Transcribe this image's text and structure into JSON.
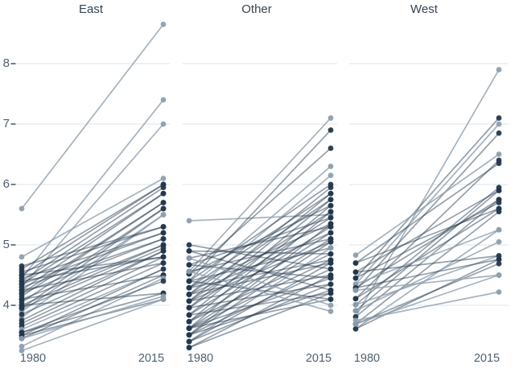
{
  "page": {
    "background": "#ffffff"
  },
  "chart_data": {
    "type": "line",
    "subtype": "slopegraph-small-multiples",
    "categories": [
      "1980",
      "2015"
    ],
    "y_axis": {
      "ticks": [
        4,
        5,
        6,
        7,
        8
      ],
      "tick_labels": [
        "4",
        "5",
        "6",
        "7",
        "8"
      ],
      "range": [
        3.2,
        8.9
      ],
      "grid": true
    },
    "legend": "none",
    "colors": {
      "dark": "#24384d",
      "light": "#8e9fae",
      "gridline": "#dde3e9",
      "tick": "#425262",
      "axis_text": "#4e5e6e",
      "title_text": "#36434f"
    },
    "lines_format": [
      "start_1980",
      "end_2015",
      "shade: d=dark, l=light"
    ],
    "facets": [
      {
        "name": "East",
        "lines": [
          [
            5.6,
            8.65,
            "l"
          ],
          [
            4.45,
            7.4,
            "l"
          ],
          [
            4.3,
            7.0,
            "l"
          ],
          [
            4.8,
            6.1,
            "l"
          ],
          [
            4.6,
            6.0,
            "d"
          ],
          [
            4.5,
            6.0,
            "d"
          ],
          [
            4.4,
            5.95,
            "d"
          ],
          [
            4.35,
            5.85,
            "d"
          ],
          [
            4.25,
            5.85,
            "d"
          ],
          [
            4.2,
            5.7,
            "d"
          ],
          [
            4.15,
            5.7,
            "d"
          ],
          [
            4.05,
            5.6,
            "d"
          ],
          [
            3.95,
            5.6,
            "d"
          ],
          [
            3.9,
            5.5,
            "l"
          ],
          [
            3.8,
            5.5,
            "l"
          ],
          [
            4.65,
            5.3,
            "d"
          ],
          [
            4.55,
            5.3,
            "d"
          ],
          [
            4.45,
            5.2,
            "d"
          ],
          [
            4.35,
            5.2,
            "d"
          ],
          [
            4.3,
            5.1,
            "d"
          ],
          [
            4.2,
            5.1,
            "d"
          ],
          [
            4.1,
            5.0,
            "d"
          ],
          [
            4.0,
            5.0,
            "d"
          ],
          [
            3.95,
            4.95,
            "d"
          ],
          [
            3.85,
            4.9,
            "d"
          ],
          [
            3.75,
            4.9,
            "d"
          ],
          [
            4.5,
            4.8,
            "d"
          ],
          [
            4.4,
            4.8,
            "d"
          ],
          [
            3.7,
            4.8,
            "d"
          ],
          [
            4.25,
            4.7,
            "d"
          ],
          [
            3.65,
            4.7,
            "d"
          ],
          [
            3.6,
            4.6,
            "l"
          ],
          [
            3.5,
            4.6,
            "d"
          ],
          [
            4.1,
            4.5,
            "d"
          ],
          [
            3.45,
            4.5,
            "d"
          ],
          [
            3.32,
            4.45,
            "l"
          ],
          [
            3.55,
            4.4,
            "d"
          ],
          [
            4.0,
            4.2,
            "d"
          ],
          [
            3.55,
            4.2,
            "d"
          ],
          [
            3.5,
            4.1,
            "d"
          ],
          [
            3.45,
            4.15,
            "l"
          ],
          [
            3.25,
            4.1,
            "l"
          ]
        ]
      },
      {
        "name": "Other",
        "lines": [
          [
            5.4,
            5.5,
            "l"
          ],
          [
            4.56,
            7.1,
            "l"
          ],
          [
            4.4,
            6.9,
            "d"
          ],
          [
            4.52,
            6.6,
            "d"
          ],
          [
            4.29,
            6.3,
            "l"
          ],
          [
            4.18,
            6.15,
            "l"
          ],
          [
            4.4,
            6.0,
            "d"
          ],
          [
            4.07,
            5.95,
            "d"
          ],
          [
            4.29,
            5.85,
            "d"
          ],
          [
            3.96,
            5.85,
            "d"
          ],
          [
            4.18,
            5.75,
            "d"
          ],
          [
            3.84,
            5.75,
            "d"
          ],
          [
            4.52,
            5.65,
            "d"
          ],
          [
            3.73,
            5.65,
            "d"
          ],
          [
            4.07,
            5.55,
            "d"
          ],
          [
            3.62,
            5.55,
            "d"
          ],
          [
            4.67,
            5.45,
            "d"
          ],
          [
            3.96,
            5.45,
            "d"
          ],
          [
            3.51,
            5.35,
            "d"
          ],
          [
            4.29,
            5.35,
            "d"
          ],
          [
            4.78,
            5.3,
            "d"
          ],
          [
            3.84,
            5.3,
            "d"
          ],
          [
            4.18,
            5.2,
            "d"
          ],
          [
            3.73,
            5.2,
            "d"
          ],
          [
            4.56,
            5.1,
            "d"
          ],
          [
            3.62,
            5.1,
            "d"
          ],
          [
            4.07,
            5.05,
            "d"
          ],
          [
            3.51,
            5.05,
            "d"
          ],
          [
            4.4,
            4.95,
            "d"
          ],
          [
            3.4,
            4.95,
            "l"
          ],
          [
            4.9,
            4.85,
            "d"
          ],
          [
            3.73,
            4.85,
            "d"
          ],
          [
            4.29,
            4.75,
            "d"
          ],
          [
            3.62,
            4.75,
            "d"
          ],
          [
            4.18,
            4.7,
            "d"
          ],
          [
            3.4,
            4.7,
            "d"
          ],
          [
            5.0,
            4.6,
            "d"
          ],
          [
            3.51,
            4.6,
            "d"
          ],
          [
            4.07,
            4.5,
            "d"
          ],
          [
            3.3,
            4.5,
            "d"
          ],
          [
            4.67,
            4.45,
            "d"
          ],
          [
            3.62,
            4.45,
            "d"
          ],
          [
            3.96,
            4.35,
            "d"
          ],
          [
            3.4,
            4.35,
            "d"
          ],
          [
            4.9,
            4.25,
            "d"
          ],
          [
            3.51,
            4.25,
            "d"
          ],
          [
            3.84,
            4.2,
            "d"
          ],
          [
            3.3,
            4.2,
            "d"
          ],
          [
            4.4,
            4.1,
            "d"
          ],
          [
            3.62,
            4.1,
            "d"
          ],
          [
            4.78,
            4.0,
            "l"
          ],
          [
            4.56,
            3.9,
            "l"
          ]
        ]
      },
      {
        "name": "West",
        "lines": [
          [
            3.81,
            7.9,
            "l"
          ],
          [
            4.45,
            7.1,
            "d"
          ],
          [
            4.35,
            7.0,
            "l"
          ],
          [
            4.25,
            6.85,
            "d"
          ],
          [
            4.83,
            6.5,
            "l"
          ],
          [
            4.11,
            6.4,
            "d"
          ],
          [
            4.7,
            6.35,
            "d"
          ],
          [
            4.01,
            5.95,
            "d"
          ],
          [
            4.55,
            5.9,
            "d"
          ],
          [
            3.91,
            5.9,
            "d"
          ],
          [
            4.29,
            5.75,
            "d"
          ],
          [
            3.81,
            5.75,
            "d"
          ],
          [
            4.45,
            5.7,
            "d"
          ],
          [
            4.11,
            5.6,
            "d"
          ],
          [
            4.7,
            5.6,
            "d"
          ],
          [
            3.69,
            5.55,
            "d"
          ],
          [
            4.35,
            5.25,
            "l"
          ],
          [
            3.61,
            5.25,
            "l"
          ],
          [
            3.91,
            5.05,
            "l"
          ],
          [
            4.01,
            4.82,
            "l"
          ],
          [
            4.55,
            4.82,
            "d"
          ],
          [
            4.29,
            4.76,
            "d"
          ],
          [
            3.61,
            4.76,
            "d"
          ],
          [
            3.69,
            4.69,
            "d"
          ],
          [
            4.25,
            4.5,
            "l"
          ],
          [
            3.69,
            4.5,
            "l"
          ],
          [
            3.75,
            4.22,
            "l"
          ]
        ]
      }
    ]
  }
}
